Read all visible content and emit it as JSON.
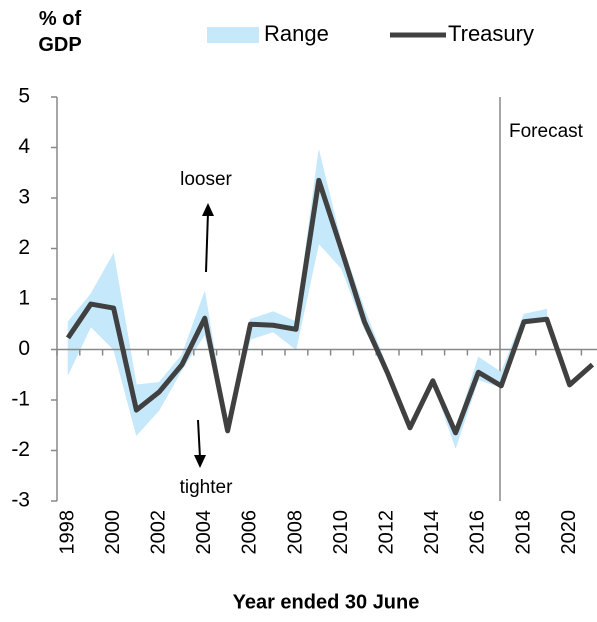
{
  "chart_data": {
    "type": "line",
    "y_label": "% of GDP",
    "x_label": "Year ended 30 June",
    "categories": [
      "1998",
      null,
      "2000",
      null,
      "2002",
      null,
      "2004",
      null,
      "2006",
      null,
      "2008",
      null,
      "2010",
      null,
      "2012",
      null,
      "2014",
      null,
      "2016",
      null,
      "2018",
      null,
      "2020",
      null
    ],
    "series": [
      {
        "name": "Range",
        "color": "#c5e8fb",
        "low": [
          -0.5,
          0.45,
          0,
          -1.7,
          -1.2,
          -0.4,
          0.3,
          -1.6,
          0.2,
          0.35,
          0,
          2.1,
          1.6,
          0.4,
          -0.45,
          -1.55,
          -0.65,
          -1.95,
          -0.6,
          -0.75,
          0.5,
          0.55,
          null,
          null
        ],
        "high": [
          0.55,
          1.1,
          1.9,
          -0.7,
          -0.65,
          -0.1,
          1.15,
          -1.6,
          0.6,
          0.75,
          0.55,
          3.95,
          2.1,
          0.8,
          -0.35,
          -1.5,
          -0.6,
          -1.6,
          -0.15,
          -0.45,
          0.7,
          0.8,
          null,
          null
        ]
      },
      {
        "name": "Treasury",
        "color": "#404040",
        "values": [
          0.23,
          0.9,
          0.82,
          -1.2,
          -0.84,
          -0.3,
          0.62,
          -1.61,
          0.5,
          0.48,
          0.4,
          3.35,
          1.97,
          0.55,
          -0.45,
          -1.55,
          -0.62,
          -1.65,
          -0.45,
          -0.72,
          0.55,
          0.6,
          -0.7,
          -0.3
        ]
      }
    ],
    "ylim": [
      -3,
      5
    ],
    "yticks": [
      -3,
      -2,
      -1,
      0,
      1,
      2,
      3,
      4,
      5
    ],
    "annotations": [
      "Forecast",
      "looser",
      "tighter"
    ]
  }
}
